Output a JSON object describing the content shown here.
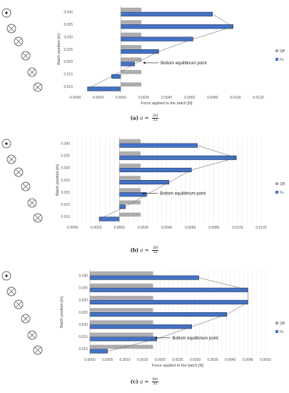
{
  "chart_data": [
    {
      "type": "bar",
      "orientation": "horizontal",
      "ylabel": "Batch position [m]",
      "xlabel": "Force applied to the batch [N]",
      "categories": [
        "0.010",
        "0.015",
        "0.020",
        "0.025",
        "0.030",
        "0.035",
        "0.040"
      ],
      "series": [
        {
          "name": "QB",
          "color": "#a6a6a6",
          "values": [
            0.0018,
            0.0018,
            0.0018,
            0.0018,
            0.0018,
            0.0018,
            0.0018
          ]
        },
        {
          "name": "Fz",
          "color": "#4472c4",
          "values": [
            -0.0029,
            -0.0008,
            0.0012,
            0.0033,
            0.0063,
            0.0098,
            0.008
          ]
        }
      ],
      "xlim": [
        -0.004,
        0.012
      ],
      "xticks": [
        "-0.0040",
        "-0.0020",
        "0.0000",
        "0.0020",
        "0.0040",
        "0.0060",
        "0.0080",
        "0.0100",
        "0.0120"
      ],
      "grid": false,
      "legend": "right",
      "annotation": "Bottom equilibrium point",
      "annotation_y": 0.02,
      "caption": {
        "label": "(a)",
        "var": "a",
        "eq": "=",
        "num": "2H",
        "den": "32"
      }
    },
    {
      "type": "bar",
      "orientation": "horizontal",
      "ylabel": "Batch position [m]",
      "xlabel": "",
      "categories": [
        "0.010",
        "0.015",
        "0.020",
        "0.025",
        "0.030",
        "0.035",
        "0.040"
      ],
      "series": [
        {
          "name": "QB",
          "color": "#a6a6a6",
          "values": [
            0.0018,
            0.0018,
            0.0018,
            0.0018,
            0.0018,
            0.0018,
            0.0018
          ]
        },
        {
          "name": "Fz",
          "color": "#4472c4",
          "values": [
            -0.0017,
            0.0005,
            0.0023,
            0.0042,
            0.0061,
            0.0099,
            0.0066
          ]
        }
      ],
      "xlim": [
        -0.004,
        0.012
      ],
      "xticks": [
        "-0.0040",
        "-0.0020",
        "0.0000",
        "0.0020",
        "0.0040",
        "0.0060",
        "0.0080",
        "0.0100",
        "0.0120"
      ],
      "grid": true,
      "legend": "right",
      "annotation": "Bottom equilibrium point",
      "annotation_y": 0.02,
      "caption": {
        "label": "(b)",
        "var": "a",
        "eq": "=",
        "num": "3H",
        "den": "32"
      }
    },
    {
      "type": "bar",
      "orientation": "horizontal",
      "ylabel": "Batch position [m]",
      "xlabel": "Force applied to the batch [N]",
      "categories": [
        "0.010",
        "0.015",
        "0.020",
        "0.025",
        "0.030",
        "0.035",
        "0.040"
      ],
      "series": [
        {
          "name": "QB",
          "color": "#a6a6a6",
          "values": [
            0.0018,
            0.0018,
            0.0018,
            0.0018,
            0.0018,
            0.0018,
            0.0018
          ]
        },
        {
          "name": "Fz",
          "color": "#4472c4",
          "values": [
            0.0005,
            0.0019,
            0.0029,
            0.0039,
            0.0045,
            0.0045,
            0.0031
          ]
        }
      ],
      "xlim": [
        0,
        0.005
      ],
      "xticks": [
        "0.0000",
        "0.0005",
        "0.0010",
        "0.0015",
        "0.0020",
        "0.0025",
        "0.0030",
        "0.0035",
        "0.0040",
        "0.0045",
        "0.0050"
      ],
      "grid": true,
      "legend": "right",
      "annotation": "Bottom equilibrium point",
      "annotation_y": 0.015,
      "caption": {
        "label": "(c)",
        "var": "a",
        "eq": "=",
        "num": "4H",
        "den": "32"
      }
    }
  ]
}
